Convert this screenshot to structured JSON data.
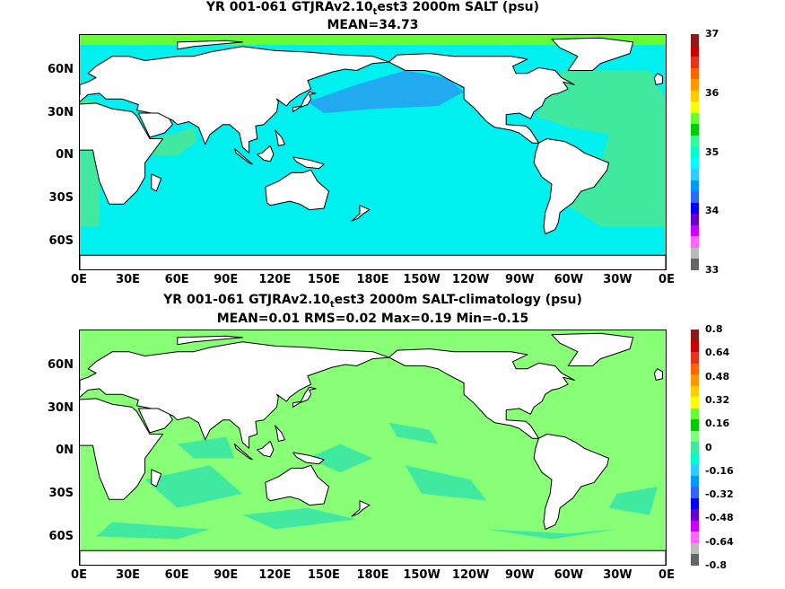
{
  "chart_data": [
    {
      "type": "heatmap",
      "title_main": "YR 001-061 GTJRAv2.10",
      "title_sub": "t",
      "title_rest": "est3 2000m SALT (psu)",
      "subtitle": "MEAN=34.73",
      "x_tick_labels": [
        "0E",
        "30E",
        "60E",
        "90E",
        "120E",
        "150E",
        "180E",
        "150W",
        "120W",
        "90W",
        "60W",
        "30W",
        "0E"
      ],
      "y_tick_labels": [
        "60N",
        "30N",
        "0N",
        "30S",
        "60S"
      ],
      "y_tick_values": [
        60,
        30,
        0,
        -30,
        -60
      ],
      "xlim": [
        0,
        360
      ],
      "ylim": [
        -80,
        85
      ],
      "colorbar": {
        "range": [
          33,
          37
        ],
        "labels": [
          "37",
          "36",
          "35",
          "34",
          "33"
        ],
        "colors": [
          "#8b1a1a",
          "#cc0000",
          "#e6331a",
          "#ff6600",
          "#ff9900",
          "#ffcc00",
          "#ffff00",
          "#66ff33",
          "#00cc00",
          "#33ff99",
          "#00ffcc",
          "#00ffff",
          "#33ccff",
          "#0099ff",
          "#3366ff",
          "#0000ff",
          "#6600cc",
          "#cc00ff",
          "#ff66ff",
          "#bbbbbb",
          "#666666"
        ]
      },
      "colors": {
        "ocean_main": "#00f0f0",
        "atlantic": "#40e8a0",
        "north_pacific": "#22aaf0",
        "land": "#ffffff",
        "ice_edge": "#66ff33"
      }
    },
    {
      "type": "heatmap",
      "title_main": "YR 001-061 GTJRAv2.10",
      "title_sub": "t",
      "title_rest": "est3 2000m SALT-climatology (psu)",
      "subtitle": "MEAN=0.01   RMS=0.02   Max=0.19   Min=-0.15",
      "x_tick_labels": [
        "0E",
        "30E",
        "60E",
        "90E",
        "120E",
        "150E",
        "180E",
        "150W",
        "120W",
        "90W",
        "60W",
        "30W",
        "0E"
      ],
      "y_tick_labels": [
        "60N",
        "30N",
        "0N",
        "30S",
        "60S"
      ],
      "y_tick_values": [
        60,
        30,
        0,
        -30,
        -60
      ],
      "xlim": [
        0,
        360
      ],
      "ylim": [
        -80,
        85
      ],
      "colorbar": {
        "range": [
          -0.8,
          0.8
        ],
        "labels": [
          "0.8",
          "0.64",
          "0.48",
          "0.32",
          "0.16",
          "0",
          "-0.16",
          "-0.32",
          "-0.48",
          "-0.64",
          "-0.8"
        ],
        "colors": [
          "#8b1a1a",
          "#cc0000",
          "#e6331a",
          "#ff6600",
          "#ff9900",
          "#ffcc00",
          "#ffff00",
          "#66ff33",
          "#00cc00",
          "#80ff80",
          "#40e8a0",
          "#00ffcc",
          "#33ccff",
          "#0099ff",
          "#3366ff",
          "#0000ff",
          "#6600cc",
          "#cc00ff",
          "#ff66ff",
          "#bbbbbb",
          "#666666"
        ]
      },
      "colors": {
        "ocean_main": "#88ff77",
        "secondary": "#40e8a0",
        "land": "#ffffff"
      }
    }
  ]
}
